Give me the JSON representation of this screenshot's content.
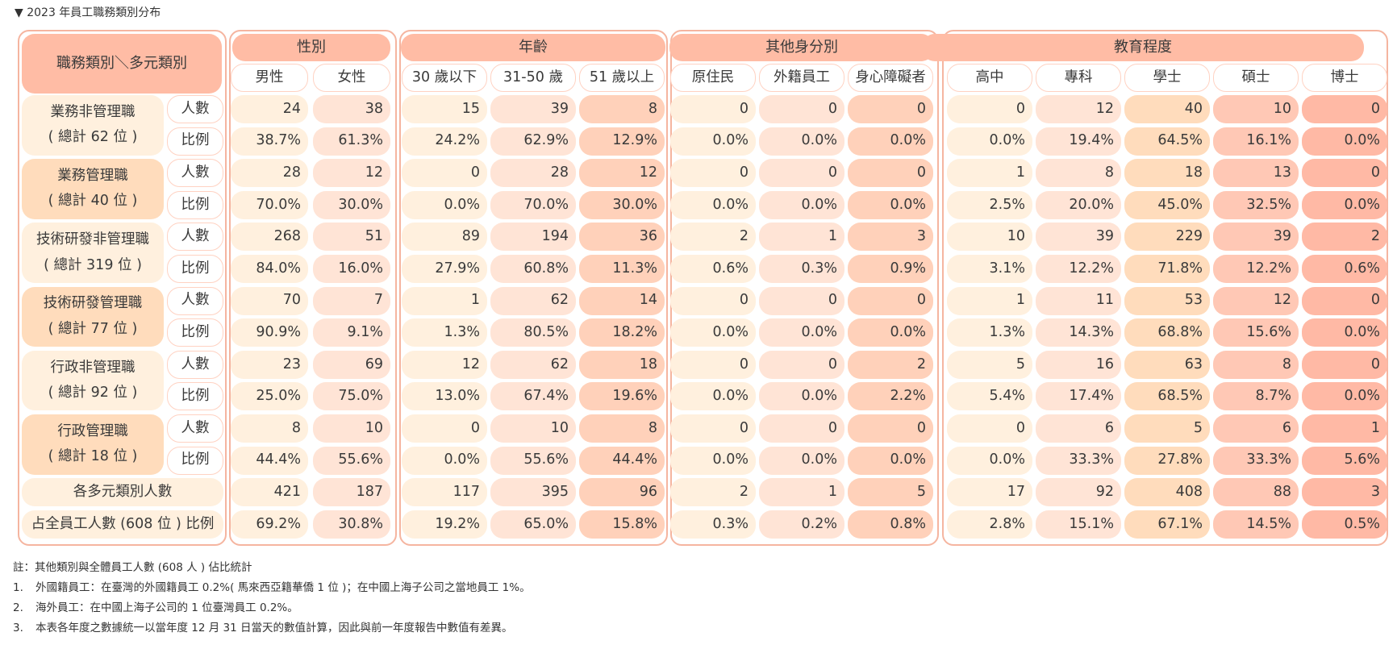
{
  "title": "▼ 2023 年員工職務類別分布",
  "corner_header": "職務類別＼多元類別",
  "groups": [
    {
      "label": "性別",
      "columns": [
        "男性",
        "女性"
      ]
    },
    {
      "label": "年齡",
      "columns": [
        "30 歲以下",
        "31-50 歲",
        "51 歲以上"
      ]
    },
    {
      "label": "其他身分別",
      "columns": [
        "原住民",
        "外籍員工",
        "身心障礙者"
      ]
    },
    {
      "label": "教育程度",
      "columns": [
        "高中",
        "專科",
        "學士",
        "碩士",
        "博士"
      ]
    }
  ],
  "count_label": "人數",
  "ratio_label": "比例",
  "categories": [
    {
      "name": "業務非管理職",
      "total": "( 總計 62 位 )",
      "counts": [
        "24",
        "38",
        "15",
        "39",
        "8",
        "0",
        "0",
        "0",
        "0",
        "12",
        "40",
        "10",
        "0"
      ],
      "ratios": [
        "38.7%",
        "61.3%",
        "24.2%",
        "62.9%",
        "12.9%",
        "0.0%",
        "0.0%",
        "0.0%",
        "0.0%",
        "19.4%",
        "64.5%",
        "16.1%",
        "0.0%"
      ]
    },
    {
      "name": "業務管理職",
      "total": "( 總計 40 位 )",
      "counts": [
        "28",
        "12",
        "0",
        "28",
        "12",
        "0",
        "0",
        "0",
        "1",
        "8",
        "18",
        "13",
        "0"
      ],
      "ratios": [
        "70.0%",
        "30.0%",
        "0.0%",
        "70.0%",
        "30.0%",
        "0.0%",
        "0.0%",
        "0.0%",
        "2.5%",
        "20.0%",
        "45.0%",
        "32.5%",
        "0.0%"
      ]
    },
    {
      "name": "技術研發非管理職",
      "total": "( 總計 319 位 )",
      "counts": [
        "268",
        "51",
        "89",
        "194",
        "36",
        "2",
        "1",
        "3",
        "10",
        "39",
        "229",
        "39",
        "2"
      ],
      "ratios": [
        "84.0%",
        "16.0%",
        "27.9%",
        "60.8%",
        "11.3%",
        "0.6%",
        "0.3%",
        "0.9%",
        "3.1%",
        "12.2%",
        "71.8%",
        "12.2%",
        "0.6%"
      ]
    },
    {
      "name": "技術研發管理職",
      "total": "( 總計 77 位 )",
      "counts": [
        "70",
        "7",
        "1",
        "62",
        "14",
        "0",
        "0",
        "0",
        "1",
        "11",
        "53",
        "12",
        "0"
      ],
      "ratios": [
        "90.9%",
        "9.1%",
        "1.3%",
        "80.5%",
        "18.2%",
        "0.0%",
        "0.0%",
        "0.0%",
        "1.3%",
        "14.3%",
        "68.8%",
        "15.6%",
        "0.0%"
      ]
    },
    {
      "name": "行政非管理職",
      "total": "( 總計 92 位 )",
      "counts": [
        "23",
        "69",
        "12",
        "62",
        "18",
        "0",
        "0",
        "2",
        "5",
        "16",
        "63",
        "8",
        "0"
      ],
      "ratios": [
        "25.0%",
        "75.0%",
        "13.0%",
        "67.4%",
        "19.6%",
        "0.0%",
        "0.0%",
        "2.2%",
        "5.4%",
        "17.4%",
        "68.5%",
        "8.7%",
        "0.0%"
      ]
    },
    {
      "name": "行政管理職",
      "total": "( 總計 18 位 )",
      "counts": [
        "8",
        "10",
        "0",
        "10",
        "8",
        "0",
        "0",
        "0",
        "0",
        "6",
        "5",
        "6",
        "1"
      ],
      "ratios": [
        "44.4%",
        "55.6%",
        "0.0%",
        "55.6%",
        "44.4%",
        "0.0%",
        "0.0%",
        "0.0%",
        "0.0%",
        "33.3%",
        "27.8%",
        "33.3%",
        "5.6%"
      ]
    }
  ],
  "summary_rows": [
    {
      "label": "各多元類別人數",
      "values": [
        "421",
        "187",
        "117",
        "395",
        "96",
        "2",
        "1",
        "5",
        "17",
        "92",
        "408",
        "88",
        "3"
      ]
    },
    {
      "label": "占全員工人數 (608 位 ) 比例",
      "values": [
        "69.2%",
        "30.8%",
        "19.2%",
        "65.0%",
        "15.8%",
        "0.3%",
        "0.2%",
        "0.8%",
        "2.8%",
        "15.1%",
        "67.1%",
        "14.5%",
        "0.5%"
      ]
    }
  ],
  "notes": {
    "header": "註：其他類別與全體員工人數 (608 人 ) 佔比統計",
    "items": [
      {
        "num": "1.",
        "text": "外國籍員工：在臺灣的外國籍員工 0.2%( 馬來西亞籍華僑 1 位 )；在中國上海子公司之當地員工 1%。"
      },
      {
        "num": "2.",
        "text": "海外員工：在中國上海子公司的 1 位臺灣員工 0.2%。"
      },
      {
        "num": "3.",
        "text": "本表各年度之數據統一以當年度 12 月 31 日當天的數值計算，因此與前一年度報告中數值有差異。"
      }
    ]
  },
  "colors": {
    "border": "#f5b5a0",
    "group_header": "#ffbca5",
    "corner_header": "#ffbca5",
    "cat_light": "#fff0de",
    "cat_dark": "#ffdcbc",
    "summary_label": "#fff0de",
    "column_shades": [
      "#fff0de",
      "#ffe4d6",
      "#fff0de",
      "#ffe4d6",
      "#ffd1ba",
      "#fff0de",
      "#ffe4d6",
      "#ffd1ba",
      "#fff0de",
      "#ffe4d6",
      "#ffdcbc",
      "#ffc8b5",
      "#ffb9a5"
    ]
  }
}
